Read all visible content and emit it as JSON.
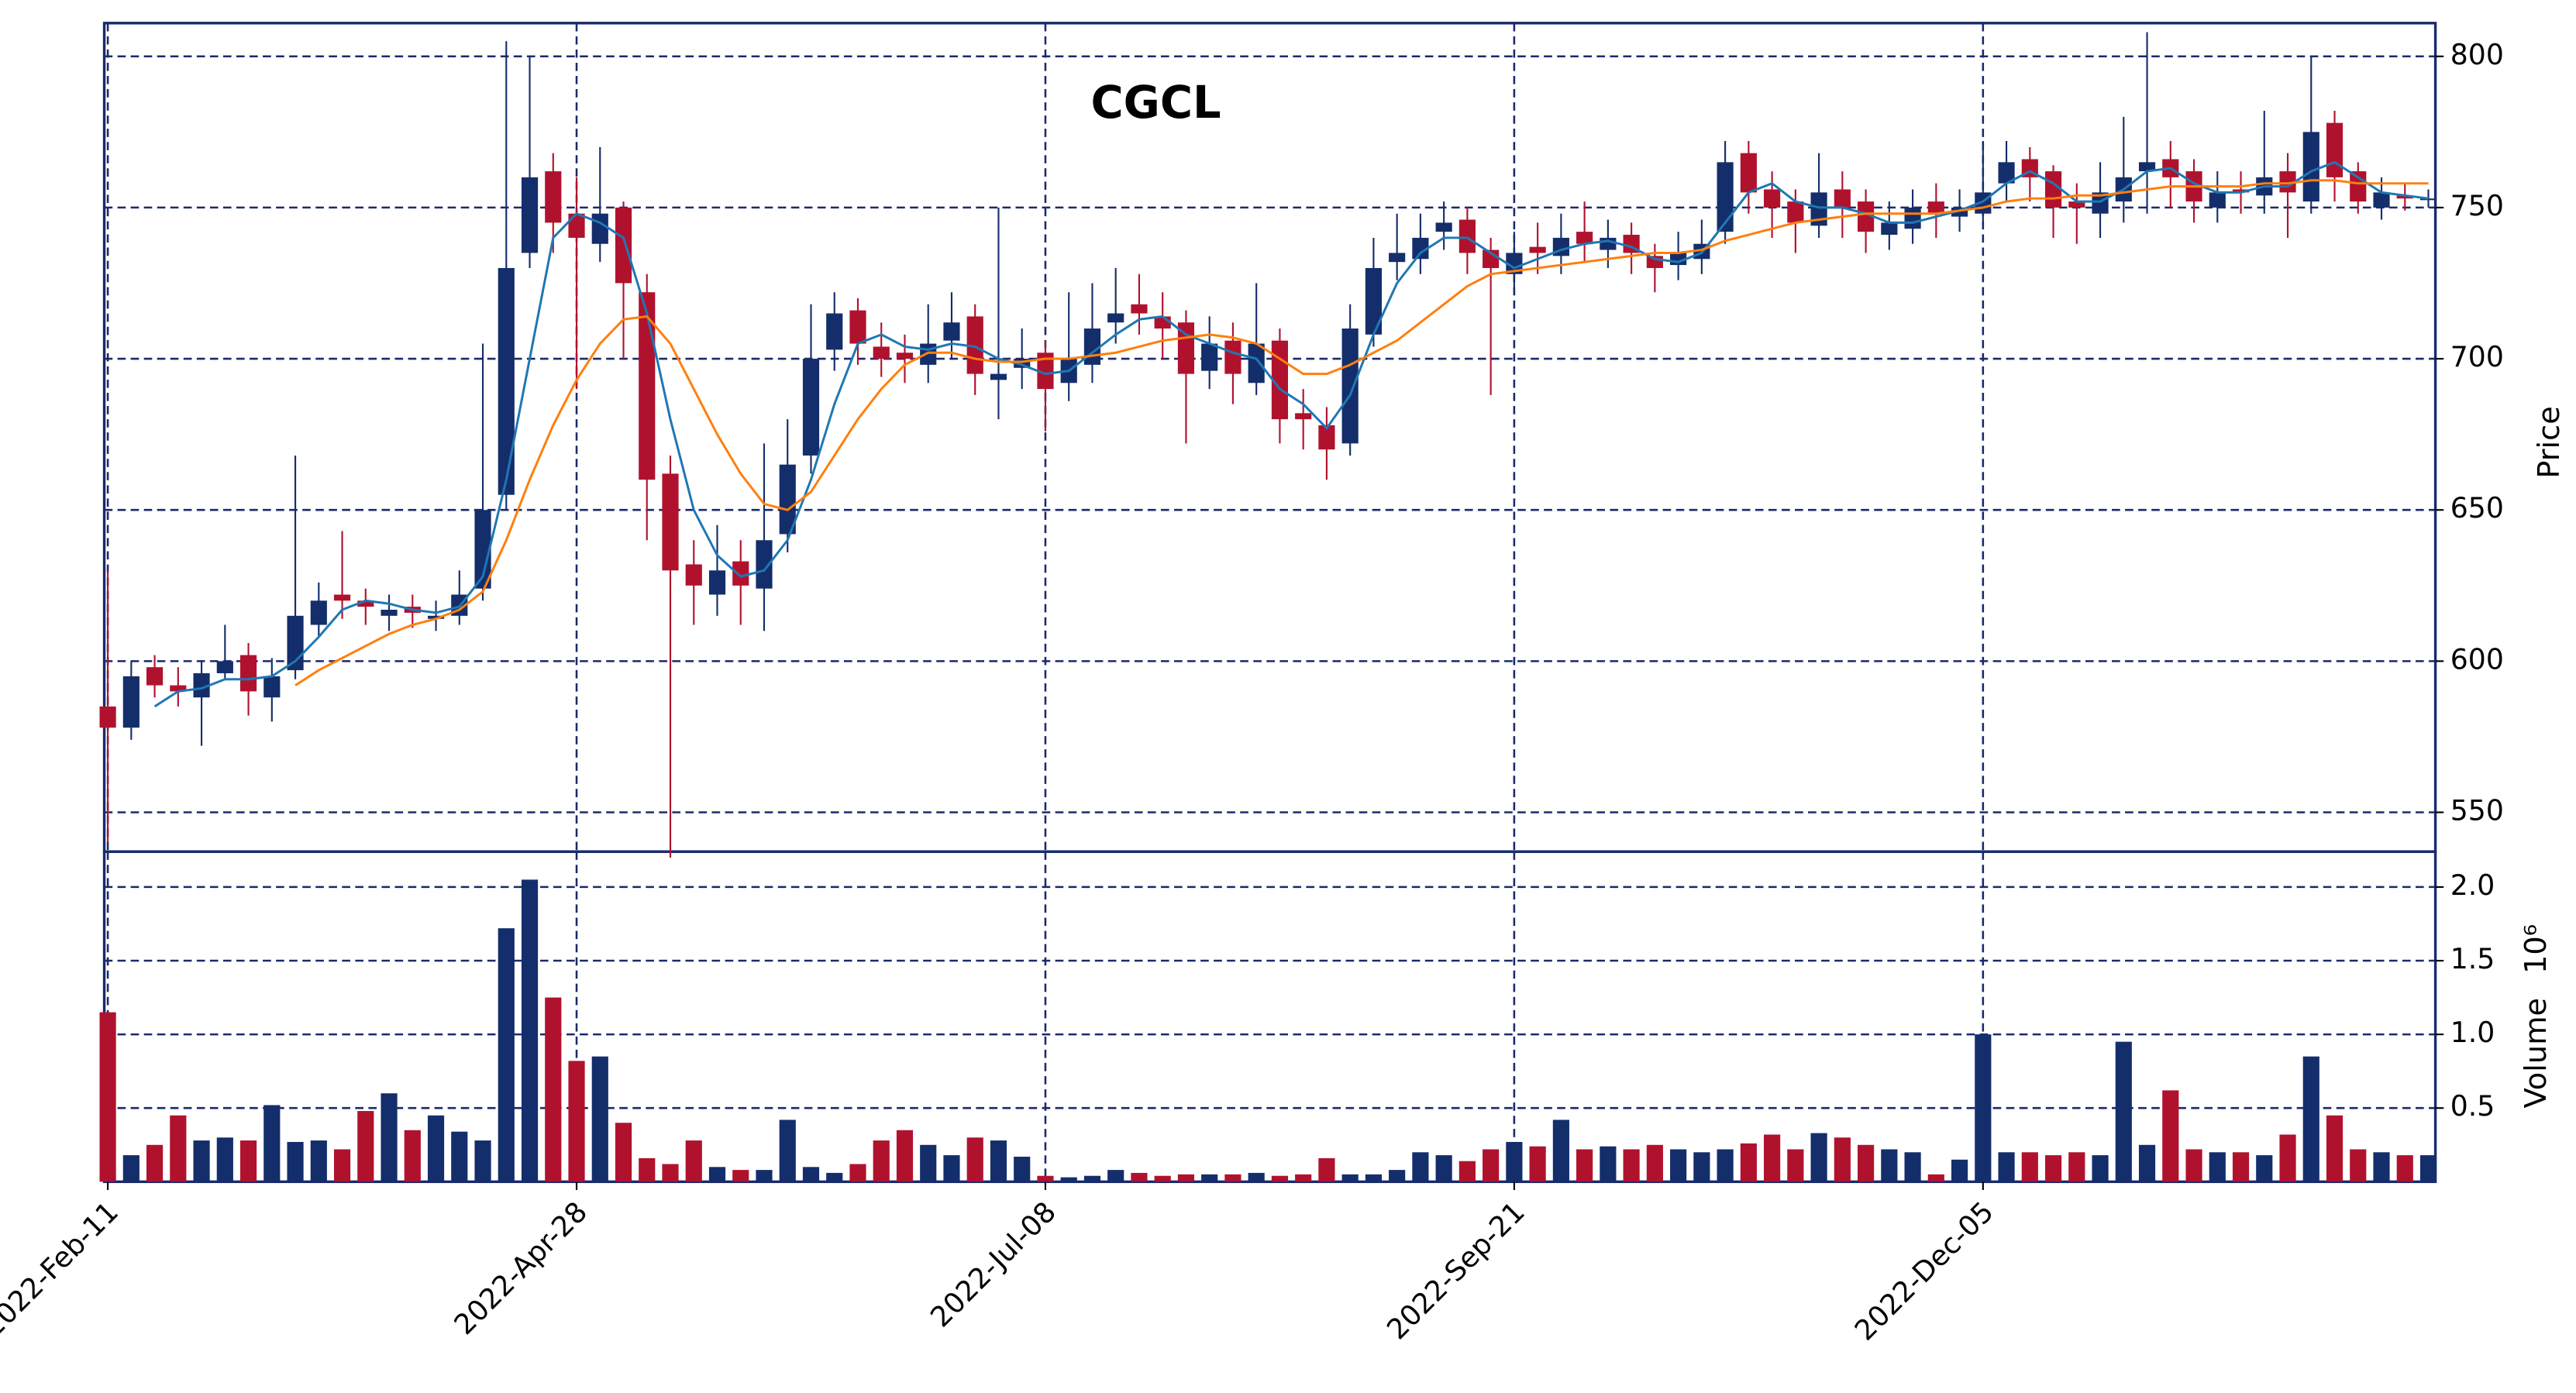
{
  "chart_data": {
    "type": "candlestick",
    "title": "CGCL",
    "ylabel": "Price",
    "up_color": "#142e6b",
    "down_color": "#b0122e",
    "grid": true,
    "xlim": [
      -0.15,
      99.3
    ],
    "xticks": [
      {
        "value": 0,
        "label": "2022-Feb-11"
      },
      {
        "value": 20,
        "label": "2022-Apr-28"
      },
      {
        "value": 40,
        "label": "2022-Jul-08"
      },
      {
        "value": 60,
        "label": "2022-Sep-21"
      },
      {
        "value": 80,
        "label": "2022-Dec-05"
      }
    ],
    "ylim": [
      537,
      811
    ],
    "yticks": [
      550,
      600,
      650,
      700,
      750,
      800
    ],
    "open": [
      585,
      578,
      598,
      592,
      588,
      596,
      602,
      588,
      597,
      612,
      622,
      620,
      615,
      618,
      614,
      615,
      624,
      655,
      735,
      762,
      748,
      738,
      750,
      722,
      662,
      632,
      622,
      633,
      624,
      642,
      668,
      703,
      716,
      704,
      702,
      698,
      706,
      714,
      693,
      697,
      702,
      692,
      698,
      712,
      718,
      714,
      712,
      696,
      706,
      692,
      706,
      682,
      678,
      672,
      708,
      732,
      733,
      742,
      746,
      736,
      728,
      737,
      734,
      742,
      736,
      741,
      734,
      731,
      733,
      742,
      768,
      756,
      752,
      744,
      756,
      752,
      741,
      743,
      752,
      747,
      748,
      758,
      766,
      762,
      752,
      748,
      752,
      762,
      766,
      762,
      750,
      756,
      754,
      762,
      752,
      778,
      762,
      750,
      754,
      753
    ],
    "high": [
      630,
      600,
      602,
      598,
      600,
      612,
      606,
      601,
      668,
      626,
      643,
      624,
      622,
      622,
      620,
      630,
      705,
      805,
      800,
      768,
      760,
      770,
      752,
      728,
      668,
      640,
      645,
      640,
      672,
      680,
      718,
      722,
      720,
      712,
      708,
      718,
      722,
      718,
      750,
      710,
      706,
      722,
      725,
      730,
      728,
      722,
      716,
      714,
      712,
      725,
      710,
      690,
      684,
      718,
      740,
      748,
      748,
      752,
      750,
      740,
      742,
      745,
      748,
      752,
      746,
      745,
      738,
      742,
      746,
      772,
      772,
      762,
      756,
      768,
      762,
      756,
      752,
      756,
      758,
      756,
      772,
      772,
      770,
      764,
      758,
      765,
      780,
      808,
      772,
      766,
      762,
      762,
      782,
      768,
      800,
      782,
      765,
      760,
      758,
      756
    ],
    "low": [
      540,
      574,
      588,
      585,
      572,
      594,
      582,
      580,
      594,
      608,
      614,
      612,
      610,
      611,
      610,
      612,
      620,
      650,
      730,
      735,
      690,
      732,
      700,
      640,
      535,
      612,
      615,
      612,
      610,
      636,
      662,
      696,
      698,
      694,
      692,
      692,
      700,
      688,
      680,
      690,
      676,
      686,
      692,
      705,
      708,
      700,
      672,
      690,
      685,
      688,
      672,
      670,
      660,
      668,
      704,
      726,
      728,
      736,
      728,
      688,
      722,
      728,
      728,
      732,
      730,
      728,
      722,
      726,
      728,
      738,
      748,
      740,
      735,
      740,
      740,
      735,
      736,
      738,
      740,
      742,
      745,
      752,
      752,
      740,
      738,
      740,
      745,
      748,
      750,
      745,
      745,
      748,
      748,
      740,
      748,
      752,
      748,
      746,
      749,
      750
    ],
    "close": [
      578,
      595,
      592,
      590,
      596,
      600,
      590,
      595,
      615,
      620,
      620,
      618,
      617,
      616,
      615,
      622,
      650,
      730,
      760,
      745,
      740,
      748,
      725,
      660,
      630,
      625,
      630,
      625,
      640,
      665,
      700,
      715,
      705,
      700,
      700,
      705,
      712,
      695,
      695,
      700,
      690,
      700,
      710,
      715,
      715,
      710,
      695,
      705,
      695,
      705,
      680,
      680,
      670,
      710,
      730,
      735,
      740,
      745,
      735,
      730,
      735,
      735,
      740,
      738,
      740,
      735,
      730,
      735,
      738,
      765,
      755,
      750,
      745,
      755,
      750,
      742,
      745,
      750,
      748,
      750,
      755,
      765,
      760,
      750,
      750,
      755,
      760,
      765,
      760,
      752,
      755,
      755,
      760,
      755,
      775,
      760,
      752,
      755,
      753,
      753
    ],
    "moving_averages": [
      {
        "color": "#1f77b4",
        "values": [
          null,
          null,
          585,
          590,
          591,
          594,
          594,
          595,
          600,
          608,
          617,
          620,
          619,
          617,
          616,
          618,
          628,
          660,
          700,
          740,
          748,
          745,
          740,
          715,
          680,
          650,
          635,
          628,
          630,
          640,
          660,
          685,
          705,
          708,
          704,
          703,
          705,
          704,
          700,
          698,
          695,
          696,
          702,
          708,
          713,
          714,
          708,
          705,
          702,
          700,
          690,
          685,
          677,
          688,
          708,
          725,
          735,
          740,
          740,
          735,
          730,
          733,
          736,
          738,
          739,
          737,
          733,
          732,
          735,
          745,
          755,
          758,
          752,
          750,
          750,
          748,
          745,
          745,
          747,
          749,
          752,
          758,
          762,
          758,
          752,
          752,
          756,
          762,
          763,
          758,
          755,
          755,
          757,
          757,
          762,
          765,
          760,
          755,
          754,
          753
        ]
      },
      {
        "color": "#ff7f0e",
        "values": [
          null,
          null,
          null,
          null,
          null,
          null,
          null,
          null,
          592,
          597,
          601,
          605,
          609,
          612,
          614,
          617,
          623,
          640,
          660,
          678,
          693,
          705,
          713,
          714,
          705,
          690,
          675,
          662,
          652,
          650,
          656,
          668,
          680,
          690,
          698,
          702,
          702,
          700,
          699,
          699,
          700,
          700,
          701,
          702,
          704,
          706,
          707,
          708,
          707,
          705,
          700,
          695,
          695,
          698,
          702,
          706,
          712,
          718,
          724,
          728,
          729,
          730,
          731,
          732,
          733,
          734,
          735,
          735,
          736,
          739,
          741,
          743,
          745,
          746,
          747,
          748,
          748,
          748,
          748,
          749,
          750,
          752,
          753,
          753,
          754,
          754,
          755,
          756,
          757,
          757,
          757,
          757,
          758,
          758,
          759,
          759,
          758,
          758,
          758,
          758
        ]
      }
    ],
    "volume": {
      "label": "Volume",
      "scale_label": "10⁶",
      "ylim": [
        0,
        2.24
      ],
      "yticks": [
        0.5,
        {
          "value": 1,
          "label": "1.0"
        },
        1.5,
        {
          "value": 2,
          "label": "2.0"
        }
      ],
      "values": [
        1.15,
        0.18,
        0.25,
        0.45,
        0.28,
        0.3,
        0.28,
        0.52,
        0.27,
        0.28,
        0.22,
        0.48,
        0.6,
        0.35,
        0.45,
        0.34,
        0.28,
        1.72,
        2.05,
        1.25,
        0.82,
        0.85,
        0.4,
        0.16,
        0.12,
        0.28,
        0.1,
        0.08,
        0.08,
        0.42,
        0.1,
        0.06,
        0.12,
        0.28,
        0.35,
        0.25,
        0.18,
        0.3,
        0.28,
        0.17,
        0.04,
        0.03,
        0.04,
        0.08,
        0.06,
        0.04,
        0.05,
        0.05,
        0.05,
        0.06,
        0.04,
        0.05,
        0.16,
        0.05,
        0.05,
        0.08,
        0.2,
        0.18,
        0.14,
        0.22,
        0.27,
        0.24,
        0.42,
        0.22,
        0.24,
        0.22,
        0.25,
        0.22,
        0.2,
        0.22,
        0.26,
        0.32,
        0.22,
        0.33,
        0.3,
        0.25,
        0.22,
        0.2,
        0.05,
        0.15,
        1.0,
        0.2,
        0.2,
        0.18,
        0.2,
        0.18,
        0.95,
        0.25,
        0.62,
        0.22,
        0.2,
        0.2,
        0.18,
        0.32,
        0.85,
        0.45,
        0.22,
        0.2,
        0.18,
        0.18
      ]
    }
  }
}
